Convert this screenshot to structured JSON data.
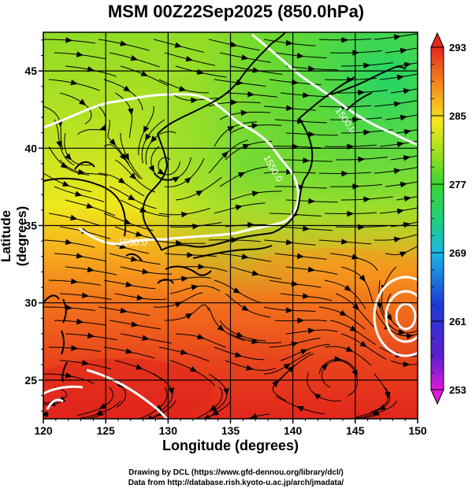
{
  "title": "MSM 00Z22Sep2025 (850.0hPa)",
  "x_axis_label": "Longitude (degrees)",
  "y_axis_label": "Latitude  (degrees)",
  "x_ticks": [
    "120",
    "125",
    "130",
    "135",
    "140",
    "145",
    "150"
  ],
  "y_ticks": [
    "25",
    "30",
    "35",
    "40",
    "45"
  ],
  "colorbar_ticks": [
    "293",
    "285",
    "277",
    "269",
    "261",
    "253"
  ],
  "contour_labels": [
    "1550.0",
    "1550.0",
    "1500.0"
  ],
  "credits": {
    "line1": "Drawing by DCL (https://www.gfd-dennou.org/library/dcl/)",
    "line2": "Data from http://database.rish.kyoto-u.ac.jp/arch/jmadata/"
  },
  "map_data": {
    "lon_range": [
      120,
      150
    ],
    "lat_range": [
      22.5,
      47.5
    ],
    "colorbar_range": [
      253,
      293
    ],
    "field": "temperature shading with streamlines and geopotential height contours",
    "colors": {
      "warm": "#e8261f",
      "mid": "#f5e71d",
      "cool": "#2fd04a",
      "cold": "#3348c8",
      "min": "#d61ad0"
    }
  }
}
